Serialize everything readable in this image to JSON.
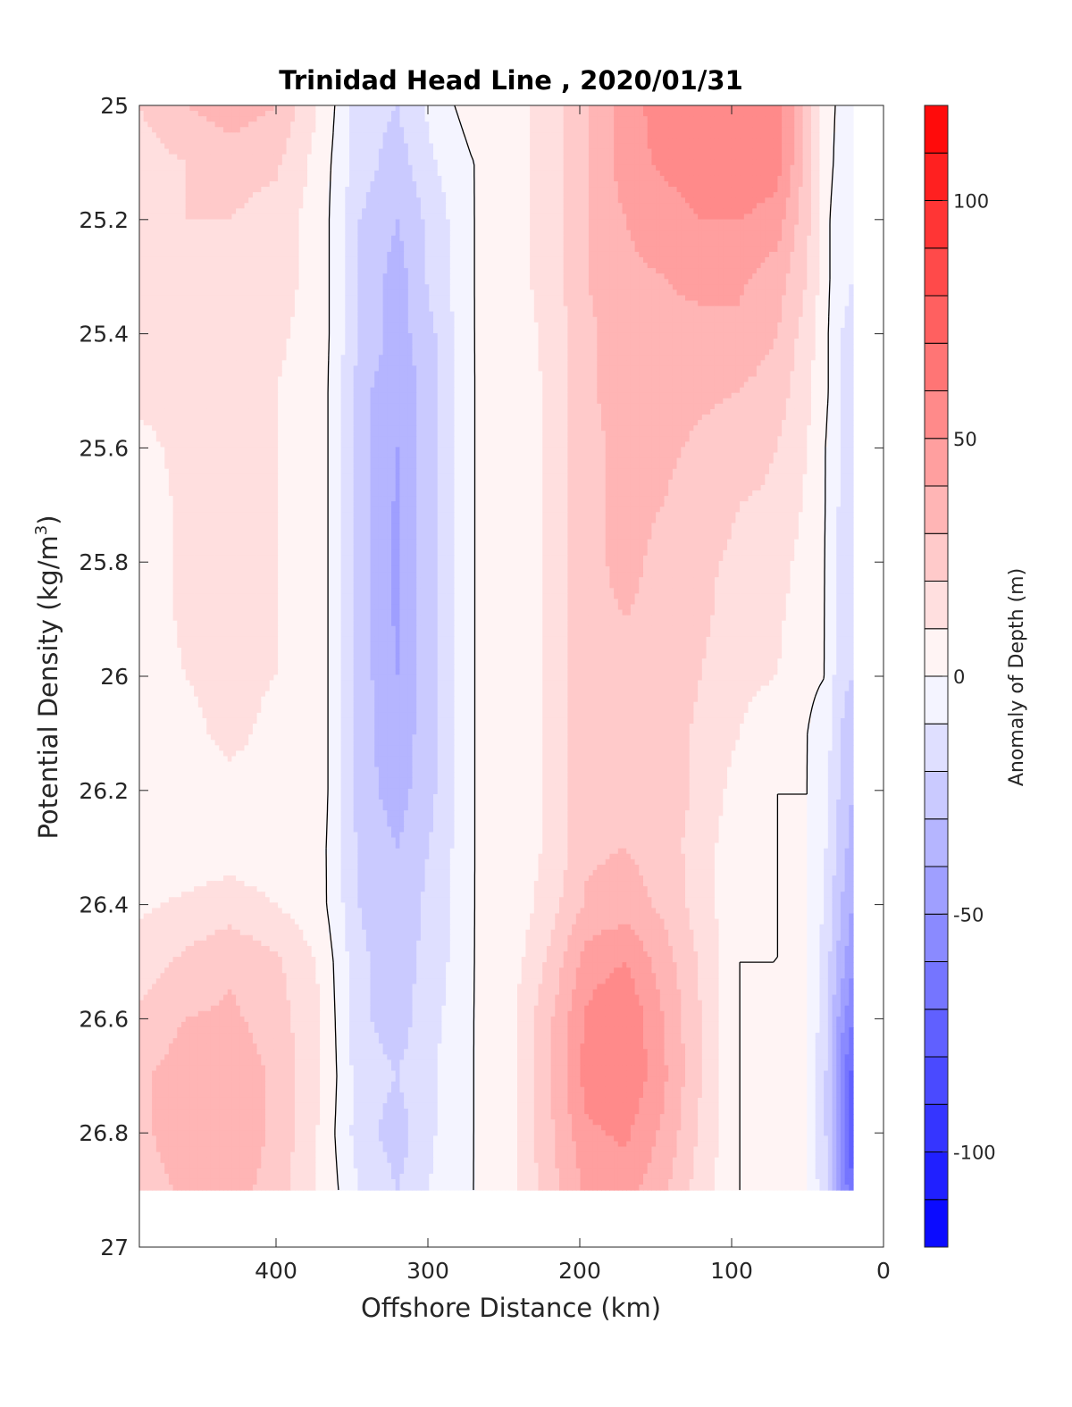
{
  "chart_data": {
    "type": "heatmap",
    "title": "Trinidad Head Line , 2020/01/31",
    "xlabel": "Offshore Distance (km)",
    "ylabel_main": "Potential Density (kg/m",
    "ylabel_sup": "3",
    "ylabel_close": ")",
    "colorbar_label": "Anomaly of Depth (m)",
    "xlim": [
      490,
      0
    ],
    "ylim": [
      25,
      27
    ],
    "x_reversed": true,
    "y_reversed": true,
    "x_ticks": [
      400,
      300,
      200,
      100,
      0
    ],
    "x_tick_labels": [
      "400",
      "300",
      "200",
      "100",
      "0"
    ],
    "y_ticks": [
      25,
      25.2,
      25.4,
      25.6,
      25.8,
      26,
      26.2,
      26.4,
      26.6,
      26.8,
      27
    ],
    "y_tick_labels": [
      "25",
      "25.2",
      "25.4",
      "25.6",
      "25.8",
      "26",
      "26.2",
      "26.4",
      "26.6",
      "26.8",
      "27"
    ],
    "color_limits": [
      -120,
      120
    ],
    "color_levels": 24,
    "colorbar_ticks": [
      100,
      50,
      0,
      -50,
      -100
    ],
    "colorbar_tick_labels": [
      "100",
      "50",
      "0",
      "-50",
      "-100"
    ],
    "colormap": "blue-white-red",
    "color_negative_max": "#0000ff",
    "color_zero": "#ffffff",
    "color_positive_max": "#ff0000",
    "zero_contour_color": "#000000",
    "data_extent": {
      "x": [
        490,
        20
      ],
      "y": [
        25,
        26.9
      ]
    },
    "grid_x": [
      490,
      460,
      430,
      400,
      370,
      345,
      320,
      295,
      270,
      245,
      220,
      195,
      170,
      145,
      120,
      95,
      70,
      50,
      38,
      28,
      20
    ],
    "grid_y": [
      25.0,
      25.1,
      25.2,
      25.3,
      25.4,
      25.5,
      25.6,
      25.7,
      25.8,
      25.9,
      26.0,
      26.1,
      26.2,
      26.3,
      26.4,
      26.5,
      26.6,
      26.7,
      26.8,
      26.9
    ],
    "depth_anomaly": [
      [
        20,
        30,
        35,
        30,
        8,
        -15,
        -20,
        -5,
        5,
        5,
        15,
        30,
        45,
        55,
        60,
        60,
        55,
        25,
        5,
        -3,
        -3
      ],
      [
        15,
        20,
        25,
        22,
        5,
        -15,
        -25,
        -10,
        0,
        5,
        15,
        30,
        45,
        52,
        55,
        60,
        55,
        25,
        5,
        -5,
        -5
      ],
      [
        15,
        20,
        20,
        15,
        5,
        -20,
        -30,
        -15,
        0,
        5,
        15,
        30,
        40,
        45,
        50,
        50,
        45,
        22,
        3,
        -8,
        -10
      ],
      [
        15,
        15,
        15,
        15,
        5,
        -20,
        -35,
        -15,
        0,
        5,
        15,
        30,
        38,
        40,
        42,
        42,
        35,
        20,
        3,
        -8,
        -10
      ],
      [
        15,
        15,
        15,
        12,
        5,
        -20,
        -35,
        -20,
        0,
        5,
        12,
        28,
        35,
        38,
        38,
        38,
        30,
        15,
        2,
        -10,
        -12
      ],
      [
        12,
        12,
        12,
        10,
        5,
        -25,
        -40,
        -20,
        0,
        3,
        12,
        28,
        35,
        35,
        32,
        30,
        25,
        12,
        2,
        -10,
        -12
      ],
      [
        8,
        12,
        12,
        10,
        5,
        -25,
        -40,
        -20,
        0,
        3,
        12,
        28,
        32,
        32,
        28,
        25,
        20,
        10,
        0,
        -12,
        -15
      ],
      [
        5,
        12,
        12,
        10,
        5,
        -25,
        -42,
        -20,
        0,
        3,
        12,
        28,
        32,
        30,
        25,
        20,
        18,
        8,
        0,
        -12,
        -15
      ],
      [
        5,
        12,
        12,
        10,
        5,
        -25,
        -42,
        -20,
        0,
        3,
        12,
        28,
        32,
        28,
        22,
        18,
        15,
        5,
        0,
        -15,
        -18
      ],
      [
        3,
        12,
        12,
        10,
        5,
        -25,
        -42,
        -20,
        0,
        3,
        12,
        28,
        30,
        28,
        22,
        15,
        12,
        3,
        0,
        -15,
        -18
      ],
      [
        3,
        10,
        12,
        10,
        5,
        -25,
        -40,
        -20,
        0,
        3,
        12,
        28,
        30,
        25,
        20,
        12,
        10,
        2,
        0,
        -18,
        -20
      ],
      [
        3,
        8,
        12,
        8,
        5,
        -25,
        -38,
        -20,
        0,
        3,
        12,
        28,
        30,
        25,
        18,
        10,
        5,
        0,
        -5,
        -20,
        -25
      ],
      [
        3,
        5,
        8,
        5,
        5,
        -25,
        -35,
        -20,
        0,
        3,
        12,
        28,
        30,
        25,
        18,
        5,
        0,
        0,
        -8,
        -22,
        -30
      ],
      [
        3,
        3,
        5,
        3,
        3,
        -22,
        -30,
        -18,
        0,
        3,
        12,
        28,
        30,
        25,
        15,
        2,
        0,
        0,
        -10,
        -25,
        -35
      ],
      [
        8,
        12,
        15,
        10,
        3,
        -20,
        -28,
        -15,
        0,
        3,
        15,
        32,
        35,
        28,
        15,
        2,
        0,
        0,
        -12,
        -30,
        -40
      ],
      [
        15,
        22,
        28,
        22,
        8,
        -18,
        -25,
        -15,
        0,
        5,
        22,
        45,
        50,
        35,
        18,
        0,
        0,
        0,
        -15,
        -35,
        -50
      ],
      [
        22,
        30,
        32,
        25,
        10,
        -18,
        -25,
        -12,
        0,
        8,
        28,
        52,
        60,
        40,
        20,
        0,
        0,
        0,
        -18,
        -45,
        -60
      ],
      [
        28,
        35,
        38,
        28,
        10,
        -15,
        -20,
        -10,
        0,
        8,
        28,
        55,
        60,
        42,
        20,
        0,
        0,
        0,
        -20,
        -55,
        -75
      ],
      [
        28,
        35,
        38,
        28,
        8,
        -15,
        -25,
        -10,
        0,
        8,
        28,
        48,
        52,
        38,
        18,
        0,
        0,
        0,
        -20,
        -55,
        -80
      ],
      [
        25,
        32,
        35,
        25,
        8,
        -10,
        -20,
        -8,
        0,
        8,
        25,
        42,
        45,
        32,
        15,
        0,
        0,
        0,
        -18,
        -50,
        -70
      ]
    ]
  }
}
